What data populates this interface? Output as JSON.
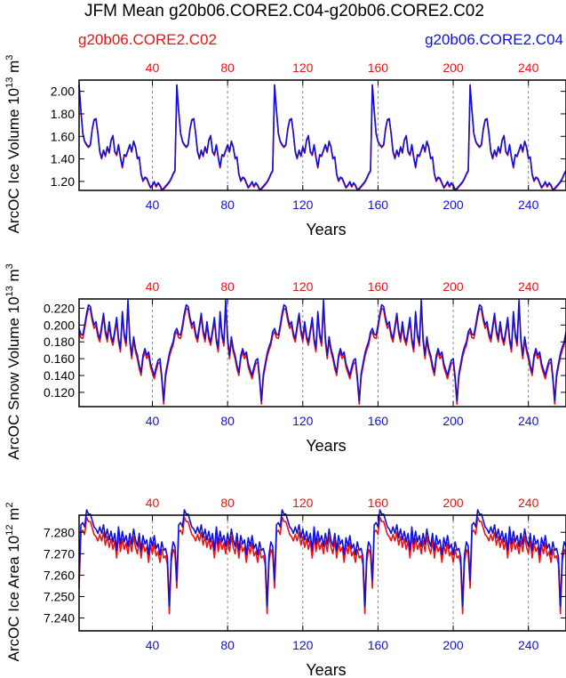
{
  "title": "JFM Mean g20b06.CORE2.C04-g20b06.CORE2.C02",
  "legend": {
    "left": "g20b06.CORE2.C02",
    "right": "g20b06.CORE2.C04"
  },
  "colors": {
    "c02": "#ee1111",
    "c04": "#1111dd",
    "axis": "#000000",
    "grid": "#888888"
  },
  "chart_data": [
    {
      "type": "line",
      "name": "ice-volume",
      "ylabel": "ArcOC Ice Volume 10^13 m^3",
      "xlabel": "Years",
      "xlim": [
        1,
        260
      ],
      "ylim": [
        1.12,
        2.1
      ],
      "xticks_top": [
        "40",
        "80",
        "120",
        "160",
        "200",
        "240"
      ],
      "xticks_bottom": [
        "40",
        "80",
        "120",
        "160",
        "200",
        "240"
      ],
      "yticks": [
        "1.20",
        "1.40",
        "1.60",
        "1.80",
        "2.00"
      ],
      "grid_x": [
        40,
        80,
        120,
        160,
        200,
        240
      ],
      "cycle_length": 52,
      "cycle_c02": [
        2.05,
        1.82,
        1.62,
        1.55,
        1.52,
        1.5,
        1.52,
        1.66,
        1.74,
        1.75,
        1.62,
        1.46,
        1.4,
        1.47,
        1.42,
        1.5,
        1.45,
        1.56,
        1.6,
        1.46,
        1.43,
        1.52,
        1.41,
        1.32,
        1.43,
        1.42,
        1.47,
        1.52,
        1.46,
        1.55,
        1.5,
        1.4,
        1.41,
        1.26,
        1.2,
        1.23,
        1.22,
        1.18,
        1.14,
        1.16,
        1.19,
        1.15,
        1.18,
        1.16,
        1.12,
        1.13,
        1.15,
        1.17,
        1.19,
        1.22,
        1.26,
        1.29
      ],
      "series": [
        {
          "name": "g20b06.CORE2.C02",
          "color": "#ee1111",
          "offset": 0.0
        },
        {
          "name": "g20b06.CORE2.C04",
          "color": "#1111dd",
          "offset": 0.008
        }
      ]
    },
    {
      "type": "line",
      "name": "snow-volume",
      "ylabel": "ArcOC Snow Volume 10^13 m^3",
      "xlabel": "Years",
      "xlim": [
        1,
        260
      ],
      "ylim": [
        0.103,
        0.231
      ],
      "xticks_top": [
        "40",
        "80",
        "120",
        "160",
        "200",
        "240"
      ],
      "xticks_bottom": [
        "40",
        "80",
        "120",
        "160",
        "200",
        "240"
      ],
      "yticks": [
        "0.120",
        "0.140",
        "0.160",
        "0.180",
        "0.200",
        "0.220"
      ],
      "grid_x": [
        40,
        80,
        120,
        160,
        200,
        240
      ],
      "cycle_length": 52,
      "cycle_c02": [
        0.192,
        0.185,
        0.184,
        0.196,
        0.21,
        0.22,
        0.218,
        0.205,
        0.196,
        0.2,
        0.186,
        0.18,
        0.195,
        0.21,
        0.19,
        0.18,
        0.2,
        0.183,
        0.176,
        0.19,
        0.205,
        0.18,
        0.168,
        0.212,
        0.186,
        0.175,
        0.226,
        0.18,
        0.16,
        0.182,
        0.168,
        0.16,
        0.148,
        0.14,
        0.16,
        0.168,
        0.16,
        0.164,
        0.15,
        0.143,
        0.136,
        0.146,
        0.154,
        0.156,
        0.135,
        0.106,
        0.138,
        0.15,
        0.162,
        0.17,
        0.176,
        0.188
      ],
      "series": [
        {
          "name": "g20b06.CORE2.C02",
          "color": "#ee1111",
          "offset": 0.0
        },
        {
          "name": "g20b06.CORE2.C04",
          "color": "#1111dd",
          "offset": 0.004
        }
      ]
    },
    {
      "type": "line",
      "name": "ice-area",
      "ylabel": "ArcOC Ice Area 10^12 m^2",
      "xlabel": "Years",
      "xlim": [
        1,
        260
      ],
      "ylim": [
        7.234,
        7.288
      ],
      "xticks_top": [
        "40",
        "80",
        "120",
        "160",
        "200",
        "240"
      ],
      "xticks_bottom": [
        "40",
        "80",
        "120",
        "160",
        "200",
        "240"
      ],
      "yticks": [
        "7.240",
        "7.250",
        "7.260",
        "7.270",
        "7.280"
      ],
      "grid_x": [
        40,
        80,
        120,
        160,
        200,
        240
      ],
      "cycle_length": 52,
      "cycle_c02": [
        7.254,
        7.28,
        7.281,
        7.279,
        7.287,
        7.285,
        7.285,
        7.282,
        7.279,
        7.278,
        7.276,
        7.279,
        7.276,
        7.28,
        7.274,
        7.278,
        7.273,
        7.277,
        7.272,
        7.276,
        7.268,
        7.279,
        7.271,
        7.277,
        7.272,
        7.275,
        7.27,
        7.276,
        7.271,
        7.278,
        7.273,
        7.27,
        7.276,
        7.268,
        7.275,
        7.271,
        7.273,
        7.266,
        7.274,
        7.27,
        7.275,
        7.269,
        7.271,
        7.266,
        7.272,
        7.268,
        7.269,
        7.265,
        7.242,
        7.266,
        7.272,
        7.27
      ],
      "series": [
        {
          "name": "g20b06.CORE2.C02",
          "color": "#ee1111",
          "offset": 0.0
        },
        {
          "name": "g20b06.CORE2.C04",
          "color": "#1111dd",
          "offset": 0.0035
        }
      ]
    }
  ]
}
